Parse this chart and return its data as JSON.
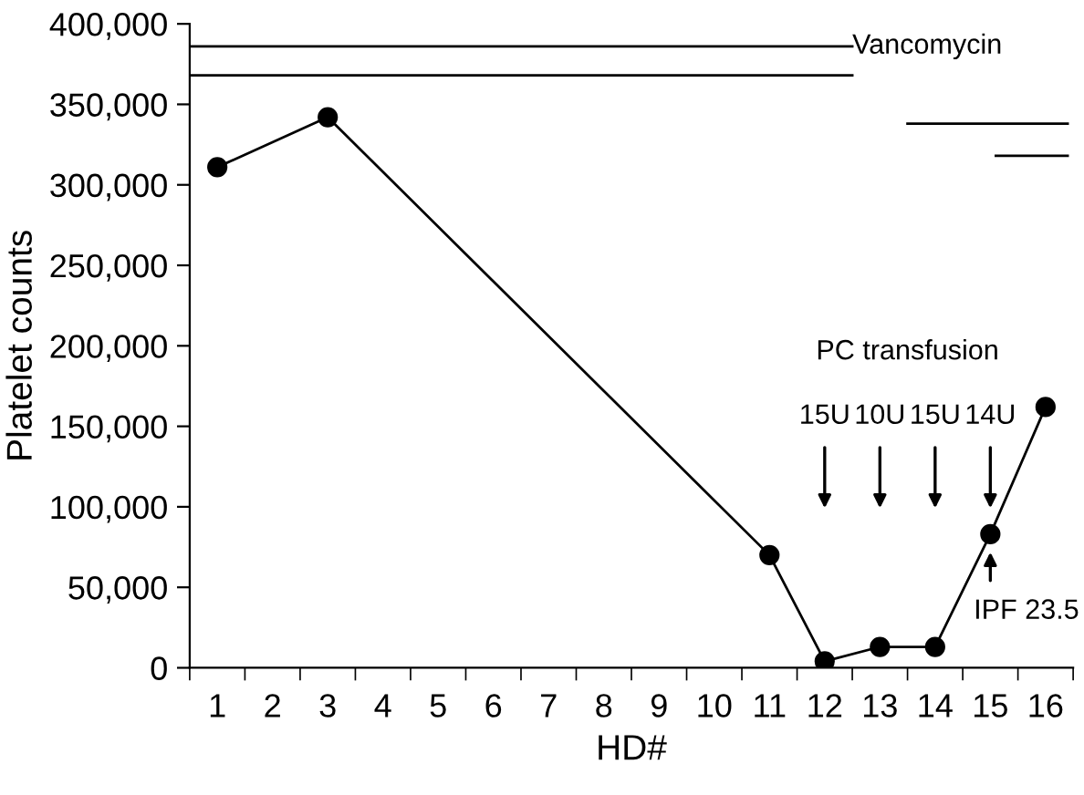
{
  "chart_data": {
    "type": "line",
    "xlabel": "HD#",
    "ylabel": "Platelet counts",
    "xlim": [
      0.5,
      16.5
    ],
    "xticks": [
      1,
      2,
      3,
      4,
      5,
      6,
      7,
      8,
      9,
      10,
      11,
      12,
      13,
      14,
      15,
      16
    ],
    "ylim": [
      0,
      400000
    ],
    "yticks": [
      {
        "value": 0,
        "label": "0"
      },
      {
        "value": 50000,
        "label": "50,000"
      },
      {
        "value": 100000,
        "label": "100,000"
      },
      {
        "value": 150000,
        "label": "150,000"
      },
      {
        "value": 200000,
        "label": "200,000"
      },
      {
        "value": 250000,
        "label": "250,000"
      },
      {
        "value": 300000,
        "label": "300,000"
      },
      {
        "value": 350000,
        "label": "350,000"
      },
      {
        "value": 400000,
        "label": "400,000"
      }
    ],
    "grid": false,
    "legend": false,
    "series": [
      {
        "color": "#000000",
        "marker": "circle",
        "x": [
          1,
          3,
          11,
          12,
          13,
          14,
          15,
          16
        ],
        "values": [
          311000,
          342000,
          70000,
          4000,
          13000,
          13000,
          83000,
          162000
        ]
      },
      {
        "name": "Vancomycin",
        "color": "#000000",
        "marker": "none",
        "x": [
          0.5,
          12.5
        ],
        "values": [
          386000,
          386000
        ]
      },
      {
        "color": "#000000",
        "marker": "none",
        "x": [
          0.5,
          12.5
        ],
        "values": [
          368000,
          368000
        ]
      },
      {
        "color": "#000000",
        "marker": "none",
        "x": [
          13.5,
          16.4
        ],
        "values": [
          338000,
          338000
        ]
      },
      {
        "color": "#000000",
        "marker": "none",
        "x": [
          15.1,
          16.4
        ],
        "values": [
          318000,
          318000
        ]
      }
    ],
    "annotations": [
      "PC transfusion",
      "15U",
      "10U",
      "15U",
      "14U",
      {
        "text": "IPF 23.5",
        "x": 15,
        "y": 83000
      }
    ]
  }
}
